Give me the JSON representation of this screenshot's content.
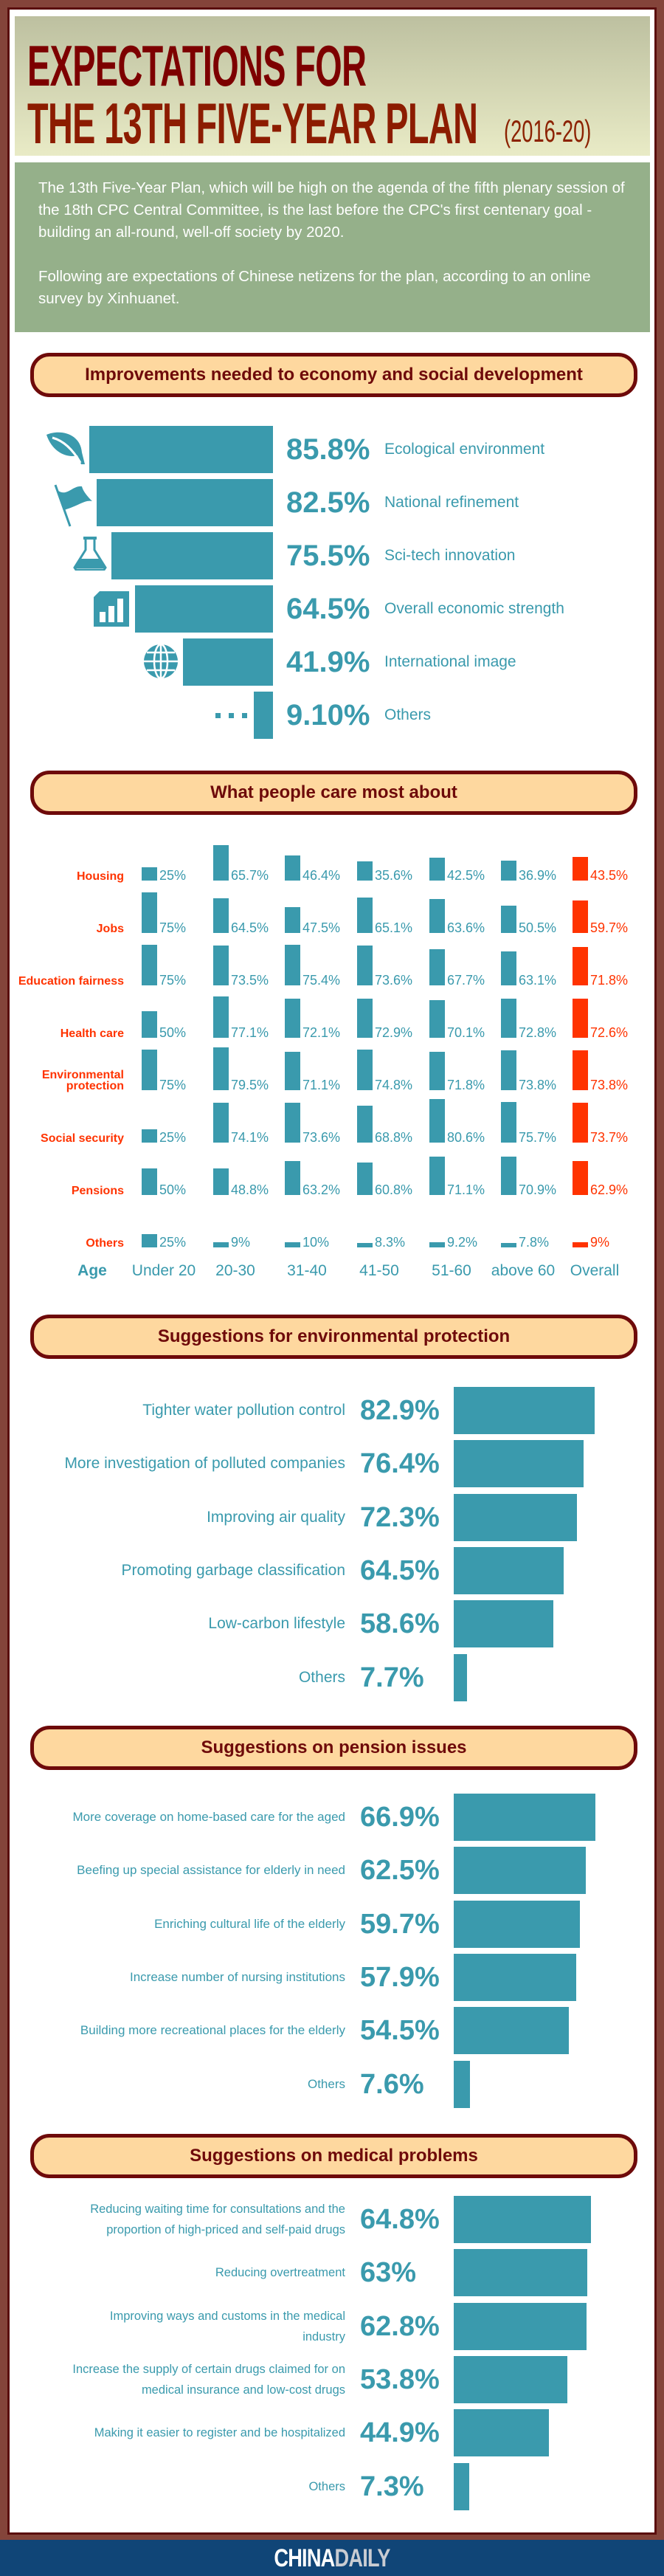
{
  "header": {
    "title_line1": "EXPECTATIONS FOR",
    "title_line2": "THE 13TH FIVE-YEAR PLAN",
    "title_years": "(2016-20)"
  },
  "intro": {
    "paragraph1": "The 13th Five-Year Plan, which will be high on the agenda of the fifth plenary session of the 18th CPC Central Committee, is the last before the CPC's first centenary goal - building an all-round, well-off society by 2020.",
    "paragraph2": "Following are expectations of Chinese netizens for the plan, according to an online survey by Xinhuanet."
  },
  "colors": {
    "teal": "#3a9aad",
    "overall": "#ff3300",
    "pill_bg": "#fed89f",
    "pill_border": "#6e0a0a",
    "footer": "#104577"
  },
  "chart_data": [
    {
      "type": "bar",
      "title": "Improvements needed to economy and social development",
      "items": [
        {
          "label": "Ecological environment",
          "value": 85.8,
          "display": "85.8%",
          "icon": "leaf-icon"
        },
        {
          "label": "National refinement",
          "value": 82.5,
          "display": "82.5%",
          "icon": "flag-icon"
        },
        {
          "label": "Sci-tech innovation",
          "value": 75.5,
          "display": "75.5%",
          "icon": "flask-icon"
        },
        {
          "label": "Overall economic strength",
          "value": 64.5,
          "display": "64.5%",
          "icon": "bar-chart-icon"
        },
        {
          "label": "International image",
          "value": 41.9,
          "display": "41.9%",
          "icon": "globe-icon"
        },
        {
          "label": "Others",
          "value": 9.1,
          "display": "9.10%",
          "icon": "ellipsis-icon"
        }
      ]
    },
    {
      "type": "bar",
      "title": "What people care most about",
      "axis_label": "Age",
      "categories": [
        "Under 20",
        "20-30",
        "31-40",
        "41-50",
        "51-60",
        "above 60",
        "Overall"
      ],
      "series": [
        {
          "name": "Housing",
          "values": [
            25,
            65.7,
            46.4,
            35.6,
            42.5,
            36.9,
            43.5
          ],
          "display": [
            "25%",
            "65.7%",
            "46.4%",
            "35.6%",
            "42.5%",
            "36.9%",
            "43.5%"
          ]
        },
        {
          "name": "Jobs",
          "values": [
            75,
            64.5,
            47.5,
            65.1,
            63.6,
            50.5,
            59.7
          ],
          "display": [
            "75%",
            "64.5%",
            "47.5%",
            "65.1%",
            "63.6%",
            "50.5%",
            "59.7%"
          ]
        },
        {
          "name": "Education fairness",
          "values": [
            75,
            73.5,
            75.4,
            73.6,
            67.7,
            63.1,
            71.8
          ],
          "display": [
            "75%",
            "73.5%",
            "75.4%",
            "73.6%",
            "67.7%",
            "63.1%",
            "71.8%"
          ]
        },
        {
          "name": "Health care",
          "values": [
            50,
            77.1,
            72.1,
            72.9,
            70.1,
            72.8,
            72.6
          ],
          "display": [
            "50%",
            "77.1%",
            "72.1%",
            "72.9%",
            "70.1%",
            "72.8%",
            "72.6%"
          ]
        },
        {
          "name": "Environmental protection",
          "values": [
            75,
            79.5,
            71.1,
            74.8,
            71.8,
            73.8,
            73.8
          ],
          "display": [
            "75%",
            "79.5%",
            "71.1%",
            "74.8%",
            "71.8%",
            "73.8%",
            "73.8%"
          ]
        },
        {
          "name": "Social security",
          "values": [
            25,
            74.1,
            73.6,
            68.8,
            80.6,
            75.7,
            73.7
          ],
          "display": [
            "25%",
            "74.1%",
            "73.6%",
            "68.8%",
            "80.6%",
            "75.7%",
            "73.7%"
          ]
        },
        {
          "name": "Pensions",
          "values": [
            50,
            48.8,
            63.2,
            60.8,
            71.1,
            70.9,
            62.9
          ],
          "display": [
            "50%",
            "48.8%",
            "63.2%",
            "60.8%",
            "71.1%",
            "70.9%",
            "62.9%"
          ]
        },
        {
          "name": "Others",
          "values": [
            25,
            9,
            10,
            8.3,
            9.2,
            7.8,
            9
          ],
          "display": [
            "25%",
            "9%",
            "10%",
            "8.3%",
            "9.2%",
            "7.8%",
            "9%"
          ]
        }
      ]
    },
    {
      "type": "bar",
      "title": "Suggestions for environmental protection",
      "items": [
        {
          "label": "Tighter water pollution control",
          "value": 82.9,
          "display": "82.9%"
        },
        {
          "label": "More investigation of polluted companies",
          "value": 76.4,
          "display": "76.4%"
        },
        {
          "label": "Improving air quality",
          "value": 72.3,
          "display": "72.3%"
        },
        {
          "label": "Promoting garbage classification",
          "value": 64.5,
          "display": "64.5%"
        },
        {
          "label": "Low-carbon lifestyle",
          "value": 58.6,
          "display": "58.6%"
        },
        {
          "label": "Others",
          "value": 7.7,
          "display": "7.7%"
        }
      ]
    },
    {
      "type": "bar",
      "title": "Suggestions on pension issues",
      "items": [
        {
          "label": "More coverage on home-based care for the aged",
          "value": 66.9,
          "display": "66.9%"
        },
        {
          "label": "Beefing up special assistance for elderly in need",
          "value": 62.5,
          "display": "62.5%"
        },
        {
          "label": "Enriching cultural life of the elderly",
          "value": 59.7,
          "display": "59.7%"
        },
        {
          "label": "Increase number of nursing institutions",
          "value": 57.9,
          "display": "57.9%"
        },
        {
          "label": "Building more recreational places for the elderly",
          "value": 54.5,
          "display": "54.5%"
        },
        {
          "label": "Others",
          "value": 7.6,
          "display": "7.6%"
        }
      ]
    },
    {
      "type": "bar",
      "title": "Suggestions on medical problems",
      "items": [
        {
          "label": "Reducing waiting time for consultations and the proportion of high-priced and self-paid drugs",
          "value": 64.8,
          "display": "64.8%"
        },
        {
          "label": "Reducing overtreatment",
          "value": 63,
          "display": "63%"
        },
        {
          "label": "Improving ways and customs in the medical industry",
          "value": 62.8,
          "display": "62.8%"
        },
        {
          "label": "Increase the supply of certain drugs claimed for on medical insurance and low-cost drugs",
          "value": 53.8,
          "display": "53.8%"
        },
        {
          "label": "Making it easier to register and be hospitalized",
          "value": 44.9,
          "display": "44.9%"
        },
        {
          "label": "Others",
          "value": 7.3,
          "display": "7.3%"
        }
      ]
    }
  ],
  "footer": {
    "logo_part1": "CHINA",
    "logo_part2": "DAILY"
  }
}
